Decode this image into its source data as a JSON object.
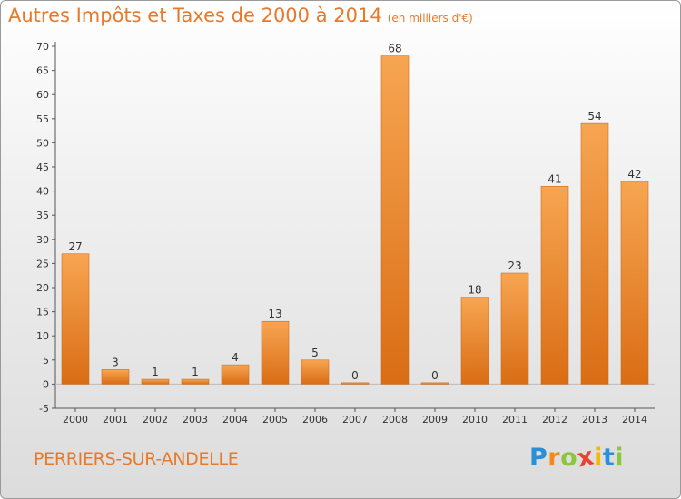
{
  "chart_data": {
    "type": "bar",
    "title": "Autres Impôts et Taxes de 2000 à 2014",
    "unit_note": "(en milliers d'€)",
    "categories": [
      "2000",
      "2001",
      "2002",
      "2003",
      "2004",
      "2005",
      "2006",
      "2007",
      "2008",
      "2009",
      "2010",
      "2011",
      "2012",
      "2013",
      "2014"
    ],
    "values": [
      27,
      3,
      1,
      1,
      4,
      13,
      5,
      0,
      68,
      0,
      18,
      23,
      41,
      54,
      42
    ],
    "ylim": [
      -5,
      70
    ],
    "yticks": [
      -5,
      0,
      5,
      10,
      15,
      20,
      25,
      30,
      35,
      40,
      45,
      50,
      55,
      60,
      65,
      70
    ],
    "grid": false,
    "xlabel": "",
    "ylabel": "",
    "bar_color": "#f0913a"
  },
  "commune": "PERRIERS-SUR-ANDELLE",
  "logo": {
    "letters": [
      "P",
      "r",
      "o",
      "x",
      "i",
      "t",
      "i"
    ],
    "colors": [
      "#2a8fd6",
      "#f08a1c",
      "#8cc63f",
      "#e8432f",
      "#f6b800",
      "#2a8fd6",
      "#8cc63f"
    ]
  }
}
